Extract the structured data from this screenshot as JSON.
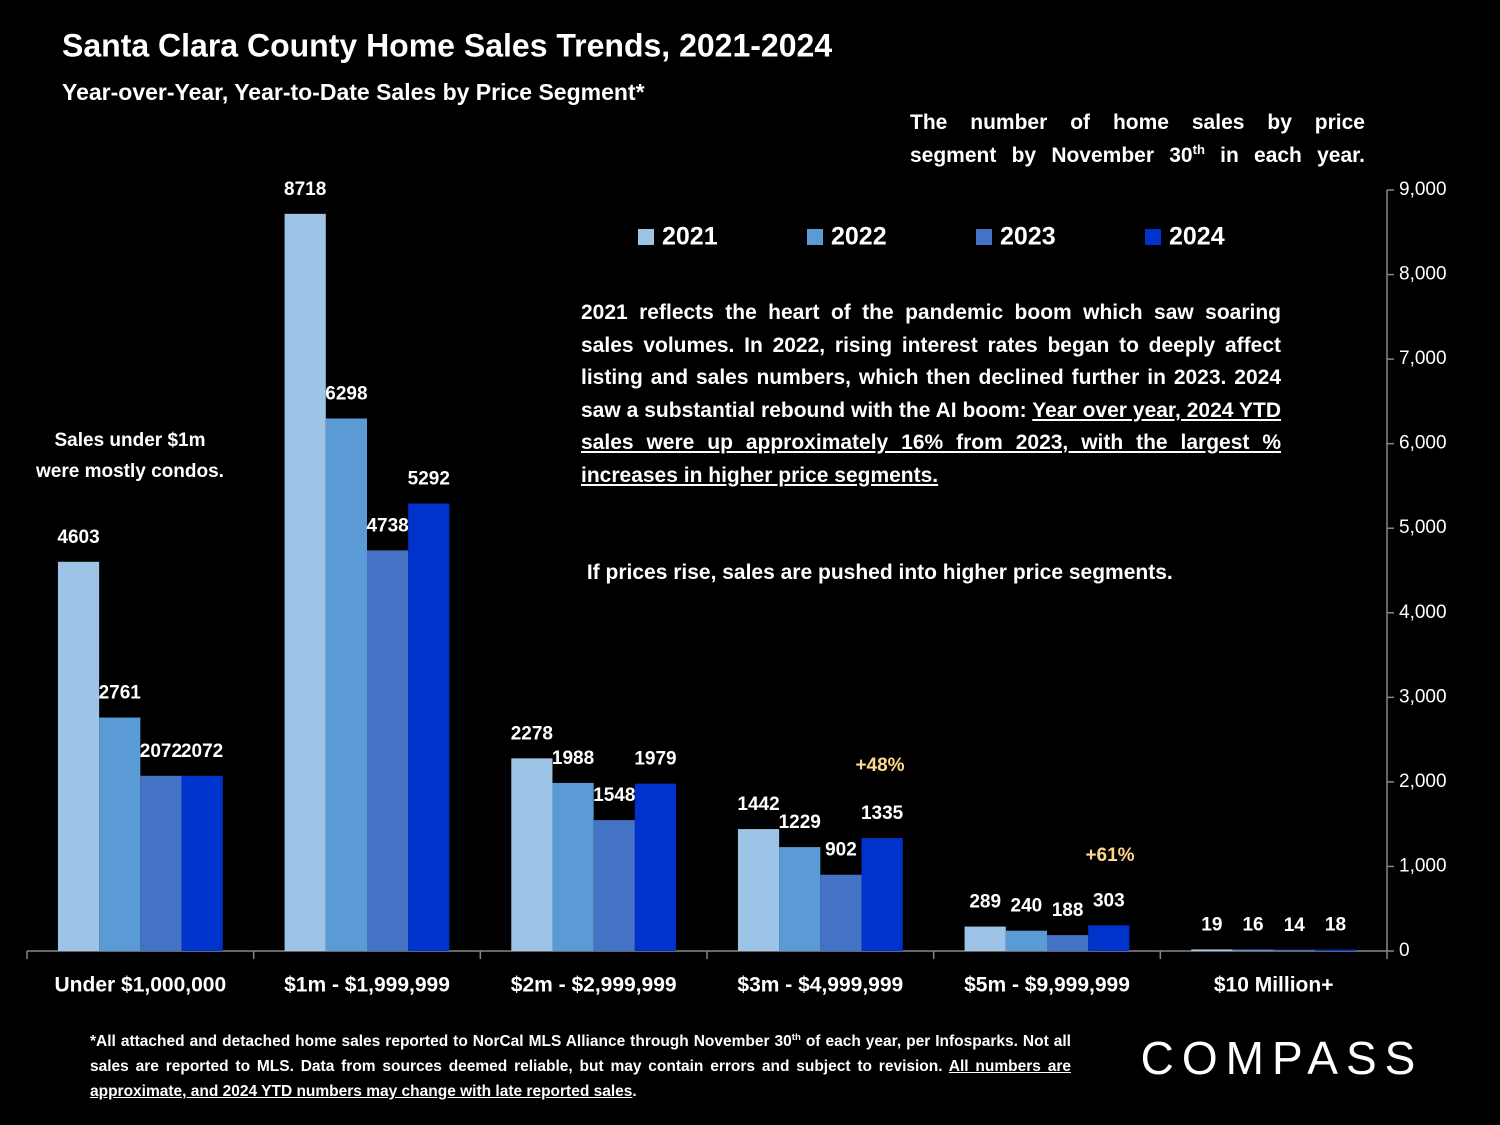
{
  "chart_data": {
    "type": "bar",
    "title": "Santa Clara County Home Sales Trends, 2021-2024",
    "subtitle": "Year-over-Year, Year-to-Date Sales by Price Segment*",
    "note": [
      "The number of home sales by price",
      "segment by November 30",
      "th",
      " in each year."
    ],
    "commentary": [
      "2021 reflects the heart of the pandemic boom which saw soaring sales volumes. In 2022, rising interest rates began to deeply affect listing and sales numbers, which then declined further in 2023. 2024 saw a substantial rebound with the AI boom:",
      "Year over year, 2024 YTD sales were up approximately 16% from 2023, with the largest % increases in higher price segments.",
      " If prices rise, sales are pushed into higher price segments."
    ],
    "condo_note": [
      "Sales under $1m",
      "were mostly condos."
    ],
    "annotations": [
      "+48%",
      "+61%"
    ],
    "categories": [
      "Under $1,000,000",
      "$1m - $1,999,999",
      "$2m - $2,999,999",
      "$3m - $4,999,999",
      "$5m - $9,999,999",
      "$10 Million+"
    ],
    "series": [
      {
        "name": "2021",
        "color": "#9dc3e6",
        "values": [
          4603,
          8718,
          2278,
          1442,
          289,
          19
        ]
      },
      {
        "name": "2022",
        "color": "#5b9bd5",
        "values": [
          2761,
          6298,
          1988,
          1229,
          240,
          16
        ]
      },
      {
        "name": "2023",
        "color": "#4472c4",
        "values": [
          2072,
          4738,
          1548,
          902,
          188,
          14
        ]
      },
      {
        "name": "2024",
        "color": "#0033cc",
        "values": [
          2072,
          5292,
          1979,
          1335,
          303,
          18
        ]
      }
    ],
    "ylim": [
      0,
      9000
    ],
    "yticks": [
      0,
      {
        "value": 1000,
        "label": "1,000"
      },
      {
        "value": 2000,
        "label": "2,000"
      },
      {
        "value": 3000,
        "label": "3,000"
      },
      {
        "value": 4000,
        "label": "4,000"
      },
      {
        "value": 5000,
        "label": "5,000"
      },
      {
        "value": 6000,
        "label": "6,000"
      },
      {
        "value": 7000,
        "label": "7,000"
      },
      {
        "value": 8000,
        "label": "8,000"
      },
      {
        "value": 9000,
        "label": "9,000"
      }
    ],
    "y_axis_side": "right",
    "grid": false,
    "legend": "top"
  },
  "footnote": [
    "*All attached and detached home sales reported to NorCal MLS Alliance through November 30",
    "th",
    " of each year, per Infosparks. Not all sales are reported to MLS. Data from sources deemed reliable, but may contain errors and subject to revision. ",
    "All numbers are approximate, and 2024 YTD numbers may change with late reported sales",
    "."
  ],
  "brand": "COMPASS"
}
